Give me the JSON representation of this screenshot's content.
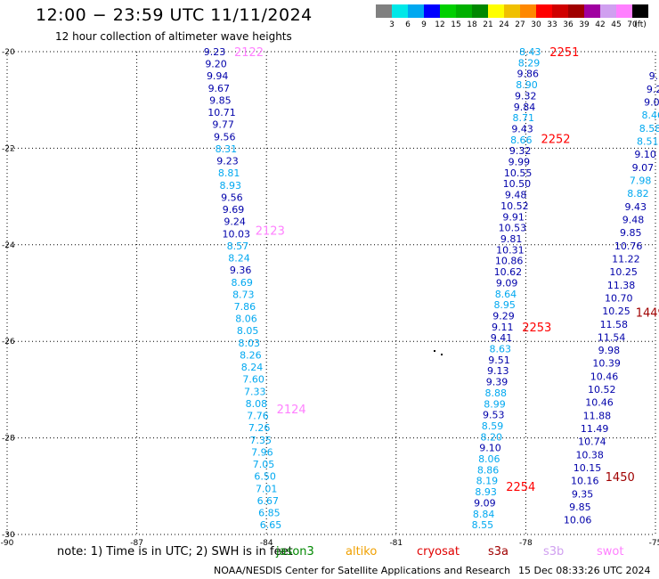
{
  "title": "12:00 − 23:59 UTC 11/11/2024",
  "subtitle": "12 hour collection of altimeter wave heights",
  "legend": {
    "unit_label": "(ft)",
    "bins": [
      {
        "label": "3",
        "color": "#808080"
      },
      {
        "label": "6",
        "color": "#00e8e8"
      },
      {
        "label": "9",
        "color": "#00a8f0"
      },
      {
        "label": "12",
        "color": "#0000ff"
      },
      {
        "label": "15",
        "color": "#00d000"
      },
      {
        "label": "18",
        "color": "#00b000"
      },
      {
        "label": "21",
        "color": "#008800"
      },
      {
        "label": "24",
        "color": "#ffff00"
      },
      {
        "label": "27",
        "color": "#f0c000"
      },
      {
        "label": "30",
        "color": "#ff8800"
      },
      {
        "label": "33",
        "color": "#ff0000"
      },
      {
        "label": "36",
        "color": "#d00000"
      },
      {
        "label": "39",
        "color": "#a00000"
      },
      {
        "label": "42",
        "color": "#a000a0"
      },
      {
        "label": "45",
        "color": "#d0a0f0"
      },
      {
        "label": "70",
        "color": "#ff80ff"
      },
      {
        "label": "",
        "color": "#000000"
      }
    ]
  },
  "map": {
    "lat_range": [
      -30,
      -20
    ],
    "lon_range": [
      -90,
      -75
    ],
    "lat_ticks": [
      "-20",
      "-22",
      "-24",
      "-26",
      "-28",
      "-30"
    ],
    "lon_ticks": [
      "-90",
      "-87",
      "-84",
      "-81",
      "-78",
      "-75"
    ],
    "grid": "dotted",
    "colors": {
      "lt9": "#00a8f0",
      "lt12": "#0000aa",
      "time": "#ff0000",
      "time_old": "#ff80ff",
      "time_dark": "#a00000"
    }
  },
  "tracks": [
    {
      "lon_start": -85.2,
      "lon_end": -83.9,
      "lat_start": -20,
      "lat_end": -29.8,
      "values": [
        "9.23",
        "9.20",
        "9.94",
        "9.67",
        "9.85",
        "10.71",
        "9.77",
        "9.56",
        "8.31",
        "9.23",
        "8.81",
        "8.93",
        "9.56",
        "9.69",
        "9.24",
        "10.03",
        "8.57",
        "8.24",
        "9.36",
        "8.69",
        "8.73",
        "7.86",
        "8.06",
        "8.05",
        "8.03",
        "8.26",
        "8.24",
        "7.60",
        "7.33",
        "8.08",
        "7.76",
        "7.26",
        "7.35",
        "7.96",
        "7.05",
        "6.50",
        "7.01",
        "6.67",
        "6.85",
        "6.65"
      ],
      "times": [
        {
          "label": "2122",
          "lat": -20.0,
          "style": "time_old"
        },
        {
          "label": "2123",
          "lat": -23.7,
          "style": "time_old"
        },
        {
          "label": "2124",
          "lat": -27.4,
          "style": "time_old"
        }
      ]
    },
    {
      "lon_start": -77.9,
      "lon_end": -79.0,
      "lat_start": -20,
      "lat_end": -29.8,
      "values": [
        "8.43",
        "8.29",
        "9.86",
        "8.90",
        "9.32",
        "9.84",
        "8.71",
        "9.43",
        "8.66",
        "9.32",
        "9.99",
        "10.55",
        "10.50",
        "9.48",
        "10.52",
        "9.91",
        "10.53",
        "9.81",
        "10.31",
        "10.86",
        "10.62",
        "9.09",
        "8.64",
        "8.95",
        "9.29",
        "9.11",
        "9.41",
        "8.63",
        "9.51",
        "9.13",
        "9.39",
        "8.88",
        "8.99",
        "9.53",
        "8.59",
        "8.20",
        "9.10",
        "8.06",
        "8.86",
        "8.19",
        "8.93",
        "9.09",
        "8.84",
        "8.55"
      ],
      "times": [
        {
          "label": "2251",
          "lat": -20.0,
          "style": "time"
        },
        {
          "label": "2252",
          "lat": -21.8,
          "style": "time"
        },
        {
          "label": "2253",
          "lat": -25.7,
          "style": "time"
        },
        {
          "label": "2254",
          "lat": -29.0,
          "style": "time"
        }
      ]
    },
    {
      "lon_start": -74.9,
      "lon_end": -76.8,
      "lat_start": -20.5,
      "lat_end": -29.7,
      "values": [
        "9.70",
        "9.24",
        "9.00",
        "8.46",
        "8.58",
        "8.51",
        "9.10",
        "9.07",
        "7.98",
        "8.82",
        "9.43",
        "9.48",
        "9.85",
        "10.76",
        "11.22",
        "10.25",
        "11.38",
        "10.70",
        "10.25",
        "11.58",
        "11.54",
        "9.98",
        "10.39",
        "10.46",
        "10.52",
        "10.46",
        "11.88",
        "11.49",
        "10.74",
        "10.38",
        "10.15",
        "10.16",
        "9.35",
        "9.85",
        "10.06"
      ],
      "times": [
        {
          "label": "1449",
          "lat": -25.4,
          "style": "time_dark"
        },
        {
          "label": "1450",
          "lat": -28.8,
          "style": "time_dark"
        }
      ]
    }
  ],
  "note": "note:  1) Time is in UTC; 2) SWH is in feet",
  "satellites": [
    {
      "label": "jason3",
      "color": "#008800"
    },
    {
      "label": "altiko",
      "color": "#f0a000"
    },
    {
      "label": "cryosat",
      "color": "#e00000"
    },
    {
      "label": "s3a",
      "color": "#a00000"
    },
    {
      "label": "s3b",
      "color": "#d0a0f0"
    },
    {
      "label": "swot",
      "color": "#ff80ff"
    }
  ],
  "footer": "NOAA/NESDIS Center for Satellite Applications and Research",
  "footer_time": "15 Dec 08:33:26 UTC 2024"
}
